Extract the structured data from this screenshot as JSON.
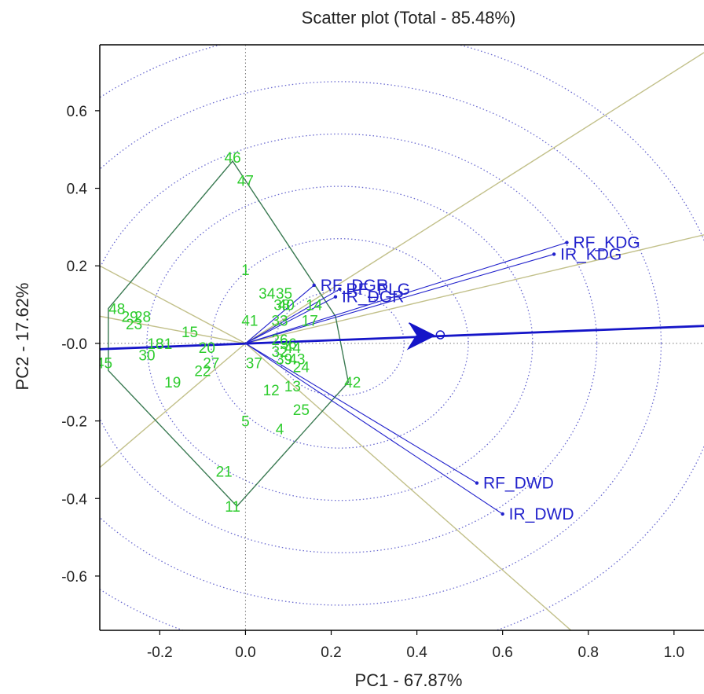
{
  "chart_data": {
    "type": "scatter",
    "title": "Scatter plot (Total - 85.48%)",
    "xlabel": "PC1 - 67.87%",
    "ylabel": "PC2 - 17.62%",
    "xlim": [
      -0.34,
      1.07
    ],
    "ylim": [
      -0.74,
      0.77
    ],
    "x_ticks": [
      {
        "value": -0.2,
        "label": "-0.2"
      },
      {
        "value": 0.0,
        "label": "0.0"
      },
      {
        "value": 0.2,
        "label": "0.2"
      },
      {
        "value": 0.4,
        "label": "0.4"
      },
      {
        "value": 0.6,
        "label": "0.6"
      },
      {
        "value": 0.8,
        "label": "0.8"
      },
      {
        "value": 1.0,
        "label": "1.0"
      }
    ],
    "y_ticks": [
      {
        "value": 0.6,
        "label": "0.6"
      },
      {
        "value": 0.4,
        "label": "0.4"
      },
      {
        "value": 0.2,
        "label": "0.2"
      },
      {
        "value": 0.0,
        "label": "-0.0"
      },
      {
        "value": -0.2,
        "label": "-0.2"
      },
      {
        "value": -0.4,
        "label": "-0.4"
      },
      {
        "value": -0.6,
        "label": "-0.6"
      }
    ],
    "circle_radii": [
      0.15,
      0.3,
      0.45,
      0.6,
      0.75,
      0.9
    ],
    "average_environment_axis": {
      "x": 1.07,
      "y": 0.045,
      "arrow_at": [
        0.44,
        0.02
      ]
    },
    "genotypes": [
      {
        "label": "46",
        "x": -0.03,
        "y": 0.48
      },
      {
        "label": "47",
        "x": 0.0,
        "y": 0.42
      },
      {
        "label": "1",
        "x": 0.0,
        "y": 0.19
      },
      {
        "label": "34",
        "x": 0.05,
        "y": 0.13
      },
      {
        "label": "35",
        "x": 0.09,
        "y": 0.13
      },
      {
        "label": "38",
        "x": 0.085,
        "y": 0.1
      },
      {
        "label": "40",
        "x": 0.095,
        "y": 0.1
      },
      {
        "label": "14",
        "x": 0.16,
        "y": 0.1
      },
      {
        "label": "41",
        "x": 0.01,
        "y": 0.06
      },
      {
        "label": "33",
        "x": 0.08,
        "y": 0.06
      },
      {
        "label": "17",
        "x": 0.15,
        "y": 0.06
      },
      {
        "label": "48",
        "x": -0.3,
        "y": 0.09
      },
      {
        "label": "29",
        "x": -0.27,
        "y": 0.07
      },
      {
        "label": "28",
        "x": -0.24,
        "y": 0.07
      },
      {
        "label": "23",
        "x": -0.26,
        "y": 0.05
      },
      {
        "label": "15",
        "x": -0.13,
        "y": 0.03
      },
      {
        "label": "18",
        "x": -0.21,
        "y": 0.0
      },
      {
        "label": "31",
        "x": -0.19,
        "y": 0.0
      },
      {
        "label": "20",
        "x": -0.09,
        "y": -0.01
      },
      {
        "label": "30",
        "x": -0.23,
        "y": -0.03
      },
      {
        "label": "27",
        "x": -0.08,
        "y": -0.05
      },
      {
        "label": "22",
        "x": -0.1,
        "y": -0.07
      },
      {
        "label": "26",
        "x": 0.08,
        "y": 0.01
      },
      {
        "label": "36",
        "x": 0.1,
        "y": 0.0
      },
      {
        "label": "32",
        "x": 0.08,
        "y": -0.02
      },
      {
        "label": "44",
        "x": 0.11,
        "y": -0.01
      },
      {
        "label": "39",
        "x": 0.09,
        "y": -0.04
      },
      {
        "label": "43",
        "x": 0.12,
        "y": -0.04
      },
      {
        "label": "24",
        "x": 0.13,
        "y": -0.06
      },
      {
        "label": "37",
        "x": 0.02,
        "y": -0.05
      },
      {
        "label": "45",
        "x": -0.33,
        "y": -0.05
      },
      {
        "label": "19",
        "x": -0.17,
        "y": -0.1
      },
      {
        "label": "12",
        "x": 0.06,
        "y": -0.12
      },
      {
        "label": "13",
        "x": 0.11,
        "y": -0.11
      },
      {
        "label": "42",
        "x": 0.25,
        "y": -0.1
      },
      {
        "label": "25",
        "x": 0.13,
        "y": -0.17
      },
      {
        "label": "5",
        "x": 0.0,
        "y": -0.2
      },
      {
        "label": "4",
        "x": 0.08,
        "y": -0.22
      },
      {
        "label": "21",
        "x": -0.05,
        "y": -0.33
      },
      {
        "label": "11",
        "x": -0.03,
        "y": -0.42
      }
    ],
    "hull": [
      [
        -0.03,
        0.47
      ],
      [
        0.21,
        0.07
      ],
      [
        0.24,
        -0.1
      ],
      [
        -0.02,
        -0.42
      ],
      [
        -0.32,
        -0.07
      ],
      [
        -0.32,
        0.09
      ]
    ],
    "environments": [
      {
        "label": "RF_KDG",
        "x": 0.75,
        "y": 0.26
      },
      {
        "label": "IR_KDG",
        "x": 0.72,
        "y": 0.23
      },
      {
        "label": "RF_DGR",
        "x": 0.16,
        "y": 0.15
      },
      {
        "label": "RF_PLG",
        "x": 0.22,
        "y": 0.14
      },
      {
        "label": "IR_DGR",
        "x": 0.21,
        "y": 0.12
      },
      {
        "label": "RF_DWD",
        "x": 0.54,
        "y": -0.36
      },
      {
        "label": "IR_DWD",
        "x": 0.6,
        "y": -0.44
      }
    ],
    "sector_rays": [
      {
        "x": 1.07,
        "y": 0.75
      },
      {
        "x": 1.07,
        "y": 0.28
      },
      {
        "x": 0.78,
        "y": -0.76
      },
      {
        "x": -0.34,
        "y": -0.32
      },
      {
        "x": -0.34,
        "y": 0.2
      },
      {
        "x": -0.34,
        "y": 0.07
      }
    ],
    "colors": {
      "genotype": "#2ecc2e",
      "environment": "#2222cc",
      "circles": "#6a6ad0",
      "hull": "#3a7a52",
      "rays": "#c2c08a",
      "axis_arrow": "#1515c8",
      "reference_lines": "#777777",
      "frame": "#000000"
    }
  }
}
